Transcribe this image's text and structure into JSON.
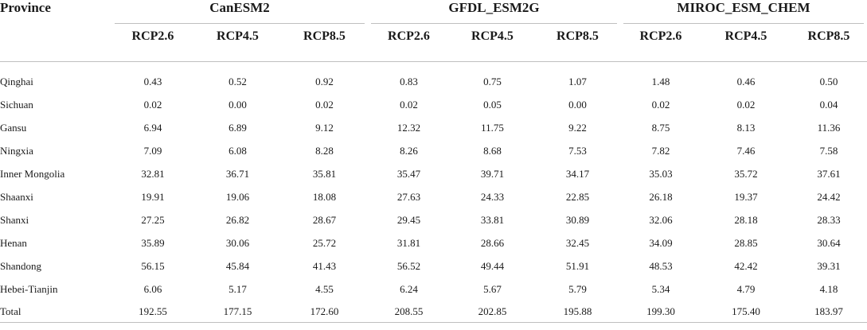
{
  "header": {
    "province_label": "Province",
    "models": [
      "CanESM2",
      "GFDL_ESM2G",
      "MIROC_ESM_CHEM"
    ],
    "scenarios": [
      "RCP2.6",
      "RCP4.5",
      "RCP8.5",
      "RCP2.6",
      "RCP4.5",
      "RCP8.5",
      "RCP2.6",
      "RCP4.5",
      "RCP8.5"
    ]
  },
  "rows": [
    {
      "province": "Qinghai",
      "values": [
        "0.43",
        "0.52",
        "0.92",
        "0.83",
        "0.75",
        "1.07",
        "1.48",
        "0.46",
        "0.50"
      ]
    },
    {
      "province": "Sichuan",
      "values": [
        "0.02",
        "0.00",
        "0.02",
        "0.02",
        "0.05",
        "0.00",
        "0.02",
        "0.02",
        "0.04"
      ]
    },
    {
      "province": "Gansu",
      "values": [
        "6.94",
        "6.89",
        "9.12",
        "12.32",
        "11.75",
        "9.22",
        "8.75",
        "8.13",
        "11.36"
      ]
    },
    {
      "province": "Ningxia",
      "values": [
        "7.09",
        "6.08",
        "8.28",
        "8.26",
        "8.68",
        "7.53",
        "7.82",
        "7.46",
        "7.58"
      ]
    },
    {
      "province": "Inner Mongolia",
      "values": [
        "32.81",
        "36.71",
        "35.81",
        "35.47",
        "39.71",
        "34.17",
        "35.03",
        "35.72",
        "37.61"
      ]
    },
    {
      "province": "Shaanxi",
      "values": [
        "19.91",
        "19.06",
        "18.08",
        "27.63",
        "24.33",
        "22.85",
        "26.18",
        "19.37",
        "24.42"
      ]
    },
    {
      "province": "Shanxi",
      "values": [
        "27.25",
        "26.82",
        "28.67",
        "29.45",
        "33.81",
        "30.89",
        "32.06",
        "28.18",
        "28.33"
      ]
    },
    {
      "province": "Henan",
      "values": [
        "35.89",
        "30.06",
        "25.72",
        "31.81",
        "28.66",
        "32.45",
        "34.09",
        "28.85",
        "30.64"
      ]
    },
    {
      "province": "Shandong",
      "values": [
        "56.15",
        "45.84",
        "41.43",
        "56.52",
        "49.44",
        "51.91",
        "48.53",
        "42.42",
        "39.31"
      ]
    },
    {
      "province": "Hebei-Tianjin",
      "values": [
        "6.06",
        "5.17",
        "4.55",
        "6.24",
        "5.67",
        "5.79",
        "5.34",
        "4.79",
        "4.18"
      ]
    },
    {
      "province": "Total",
      "values": [
        "192.55",
        "177.15",
        "172.60",
        "208.55",
        "202.85",
        "195.88",
        "199.30",
        "175.40",
        "183.97"
      ]
    }
  ]
}
